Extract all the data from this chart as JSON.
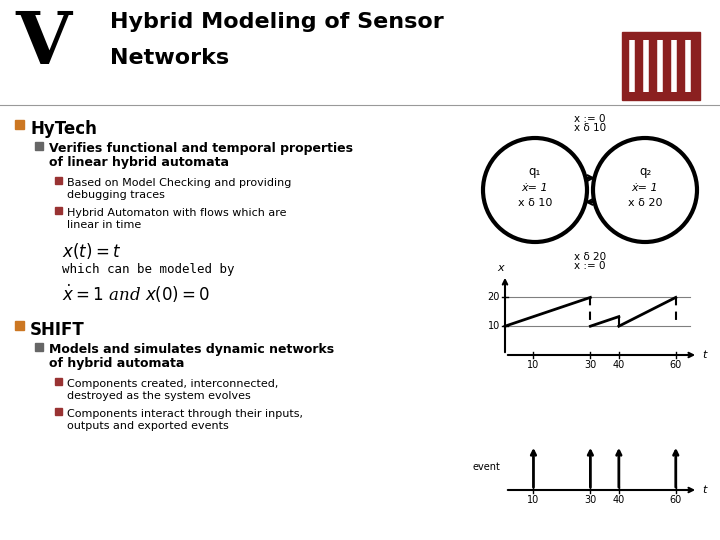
{
  "bg_color": "#ffffff",
  "header_bg": "#ffffff",
  "bullet_orange": "#cc7722",
  "bullet_gray": "#666666",
  "bullet_dark": "#993333",
  "title_line1": "Hybrid Modeling of Sensor",
  "title_line2": "Networks",
  "hytech_label": "HyTech",
  "hytech_sub_line1": "Verifies functional and temporal properties",
  "hytech_sub_line2": "of linear hybrid automata",
  "hytech_bullet1_line1": "Based on Model Checking and providing",
  "hytech_bullet1_line2": "debugging traces",
  "hytech_bullet2_line1": "Hybrid Automaton with flows which are",
  "hytech_bullet2_line2": "linear in time",
  "shift_label": "SHIFT",
  "shift_sub_line1": "Models and simulates dynamic networks",
  "shift_sub_line2": "of hybrid automata",
  "shift_bullet1_line1": "Components created, interconnected,",
  "shift_bullet1_line2": "destroyed as the system evolves",
  "shift_bullet2_line1": "Components interact through their inputs,",
  "shift_bullet2_line2": "outputs and exported events",
  "logo_color": "#8b2020",
  "graph_color": "#111111",
  "circle_lw": 3.0
}
